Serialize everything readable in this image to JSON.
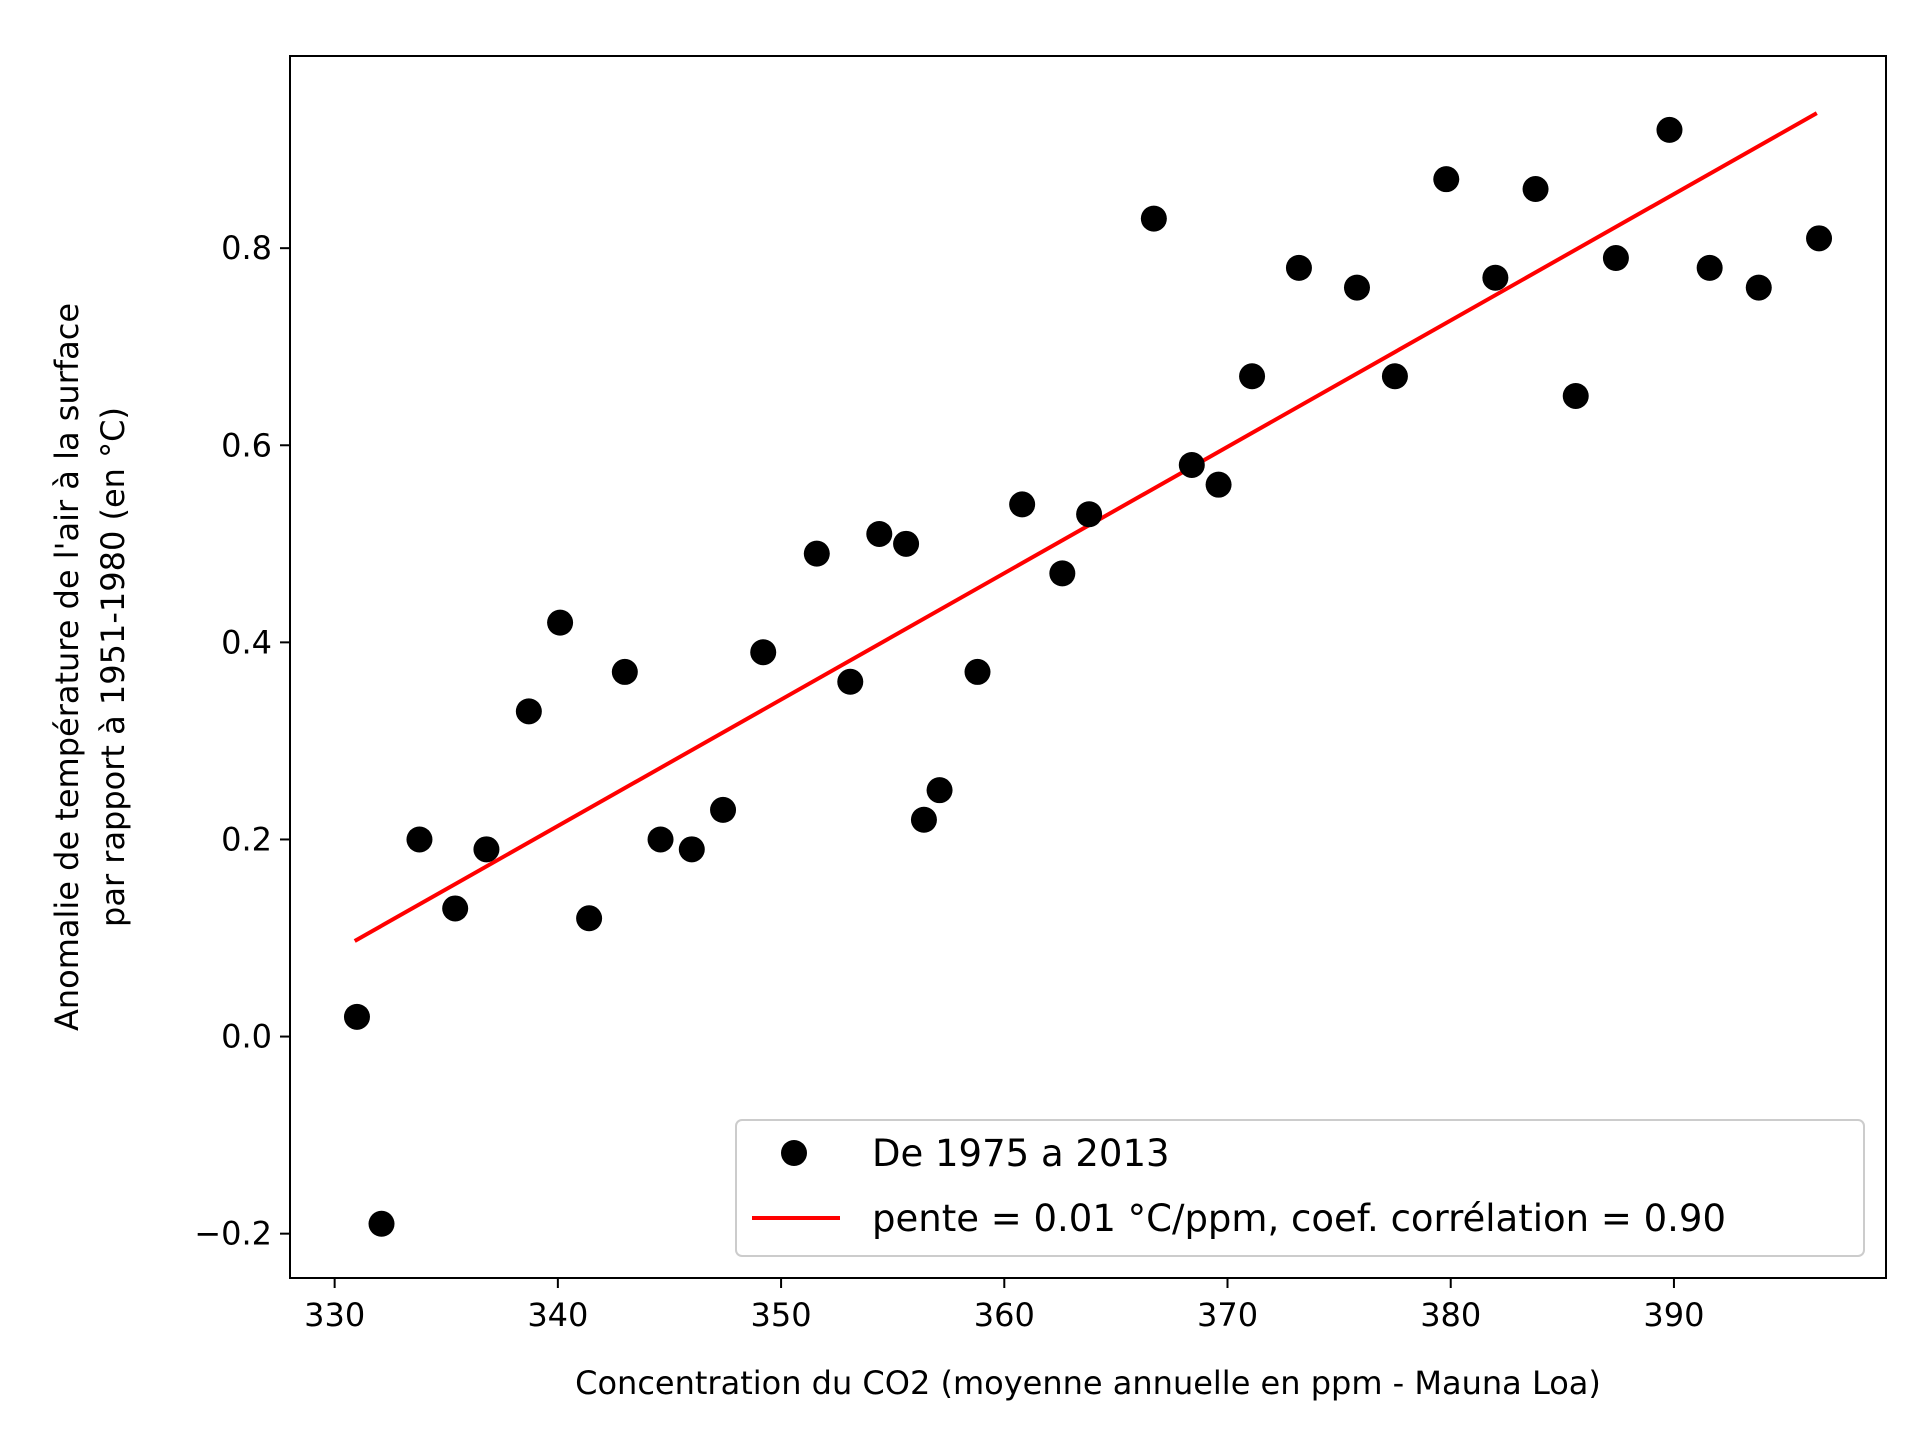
{
  "chart_data": {
    "type": "scatter",
    "title": "",
    "xlabel": "Concentration du CO2 (moyenne annuelle en ppm - Mauna Loa)",
    "ylabel_line1": "Anomalie de température de l'air à la surface",
    "ylabel_line2": "par rapport à 1951-1980 (en °C)",
    "xlim": [
      328,
      399.5
    ],
    "ylim": [
      -0.245,
      0.995
    ],
    "x_ticks": [
      330,
      340,
      350,
      360,
      370,
      380,
      390
    ],
    "y_ticks": [
      -0.2,
      0.0,
      0.2,
      0.4,
      0.6,
      0.8
    ],
    "y_tick_labels": [
      "−0.2",
      "0.0",
      "0.2",
      "0.4",
      "0.6",
      "0.8"
    ],
    "grid": false,
    "legend_position": "bottom-right",
    "series": [
      {
        "name": "De 1975 a 2013",
        "kind": "scatter",
        "color": "#000000",
        "points": [
          [
            331.0,
            0.02
          ],
          [
            332.1,
            -0.19
          ],
          [
            333.8,
            0.2
          ],
          [
            335.4,
            0.13
          ],
          [
            336.8,
            0.19
          ],
          [
            338.7,
            0.33
          ],
          [
            340.1,
            0.42
          ],
          [
            341.4,
            0.12
          ],
          [
            343.0,
            0.37
          ],
          [
            344.6,
            0.2
          ],
          [
            346.0,
            0.19
          ],
          [
            347.4,
            0.23
          ],
          [
            349.2,
            0.39
          ],
          [
            351.6,
            0.49
          ],
          [
            353.1,
            0.36
          ],
          [
            354.4,
            0.51
          ],
          [
            355.6,
            0.5
          ],
          [
            356.4,
            0.22
          ],
          [
            357.1,
            0.25
          ],
          [
            358.8,
            0.37
          ],
          [
            360.8,
            0.54
          ],
          [
            362.6,
            0.47
          ],
          [
            363.8,
            0.53
          ],
          [
            366.7,
            0.83
          ],
          [
            368.4,
            0.58
          ],
          [
            369.6,
            0.56
          ],
          [
            371.1,
            0.67
          ],
          [
            373.2,
            0.78
          ],
          [
            375.8,
            0.76
          ],
          [
            377.5,
            0.67
          ],
          [
            379.8,
            0.87
          ],
          [
            382.0,
            0.77
          ],
          [
            383.8,
            0.86
          ],
          [
            385.6,
            0.65
          ],
          [
            387.4,
            0.79
          ],
          [
            389.8,
            0.92
          ],
          [
            391.6,
            0.78
          ],
          [
            393.8,
            0.76
          ],
          [
            396.5,
            0.81
          ]
        ]
      },
      {
        "name": "pente = 0.01 °C/ppm, coef. corrélation = 0.90",
        "kind": "line",
        "color": "#ff0000",
        "points": [
          [
            330.9,
            0.097
          ],
          [
            396.4,
            0.937
          ]
        ]
      }
    ]
  }
}
